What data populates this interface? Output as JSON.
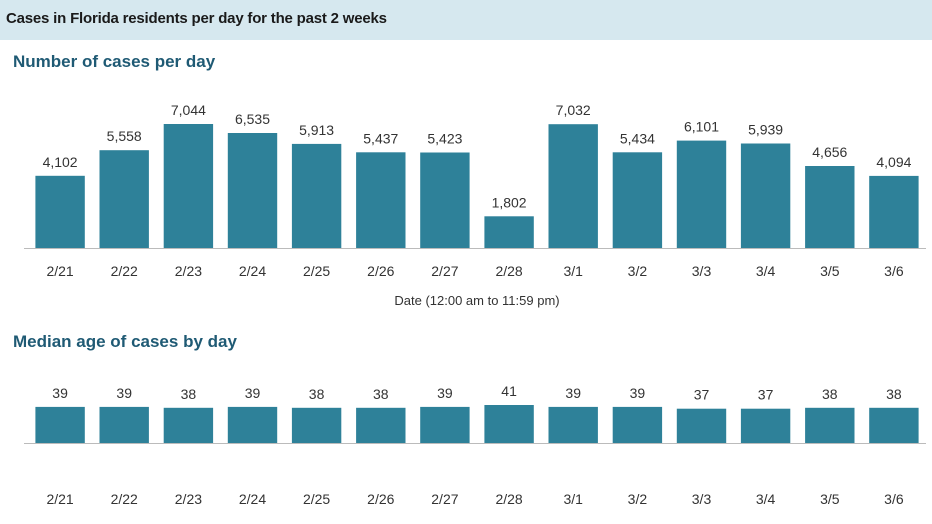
{
  "header": {
    "title": "Cases in Florida residents per day for the past 2 weeks"
  },
  "colors": {
    "bar": "#2e8199",
    "header_bg": "#d6e8ef",
    "section_title": "#1f5a74",
    "axis_line": "#bbbbbb"
  },
  "chart_data": [
    {
      "type": "bar",
      "title": "Number of cases per day",
      "xlabel": "Date (12:00 am to 11:59 pm)",
      "ylabel": "",
      "categories": [
        "2/21",
        "2/22",
        "2/23",
        "2/24",
        "2/25",
        "2/26",
        "2/27",
        "2/28",
        "3/1",
        "3/2",
        "3/3",
        "3/4",
        "3/5",
        "3/6"
      ],
      "values": [
        4102,
        5558,
        7044,
        6535,
        5913,
        5437,
        5423,
        1802,
        7032,
        5434,
        6101,
        5939,
        4656,
        4094
      ],
      "labels": [
        "4,102",
        "5,558",
        "7,044",
        "6,535",
        "5,913",
        "5,437",
        "5,423",
        "1,802",
        "7,032",
        "5,434",
        "6,101",
        "5,939",
        "4,656",
        "4,094"
      ],
      "ylim": [
        0,
        7044
      ],
      "grid": false
    },
    {
      "type": "bar",
      "title": "Median age of cases by day",
      "xlabel": "",
      "ylabel": "",
      "categories": [
        "2/21",
        "2/22",
        "2/23",
        "2/24",
        "2/25",
        "2/26",
        "2/27",
        "2/28",
        "3/1",
        "3/2",
        "3/3",
        "3/4",
        "3/5",
        "3/6"
      ],
      "values": [
        39,
        39,
        38,
        39,
        38,
        38,
        39,
        41,
        39,
        39,
        37,
        37,
        38,
        38
      ],
      "labels": [
        "39",
        "39",
        "38",
        "39",
        "38",
        "38",
        "39",
        "41",
        "39",
        "39",
        "37",
        "37",
        "38",
        "38"
      ],
      "ylim": [
        0,
        41
      ],
      "grid": false
    }
  ]
}
